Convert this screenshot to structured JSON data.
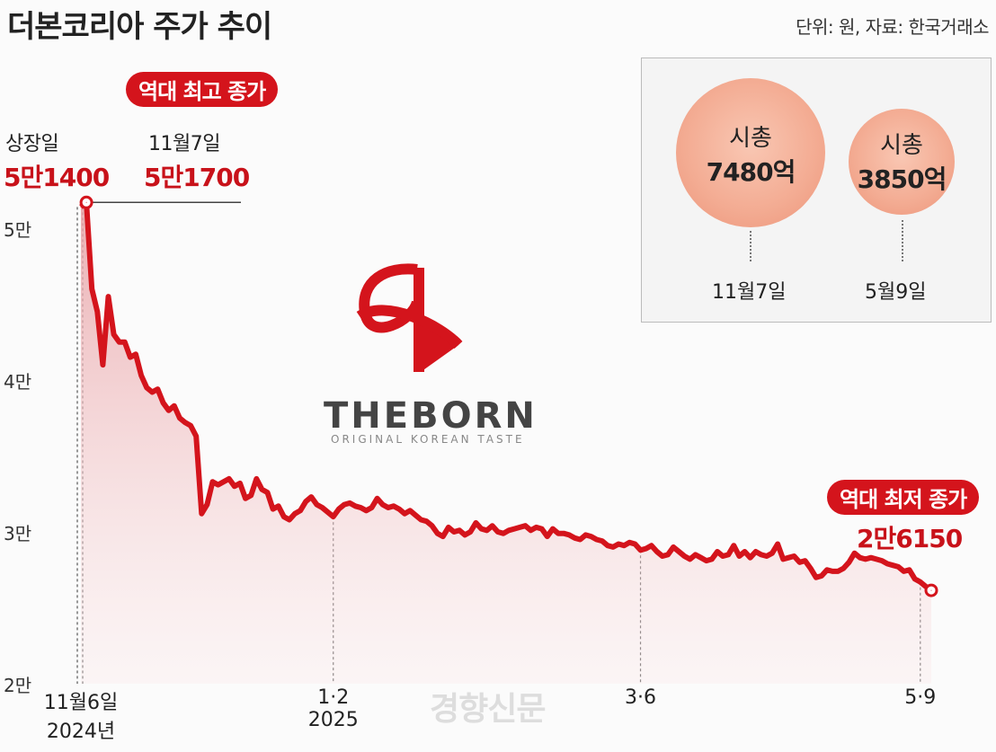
{
  "title": "더본코리아 주가 추이",
  "source": "단위: 원, 자료: 한국거래소",
  "annotations": {
    "high_pill": "역대 최고 종가",
    "low_pill": "역대 최저 종가",
    "listing_label": "상장일",
    "listing_value": "5만1400",
    "high_date": "11월7일",
    "high_value": "5만1700",
    "low_value": "2만6150"
  },
  "market_cap": {
    "bubbles": [
      {
        "label": "시총",
        "value": "7480억",
        "date": "11월7일"
      },
      {
        "label": "시총",
        "value": "3850억",
        "date": "5월9일"
      }
    ],
    "color": "#f3ab92"
  },
  "logo": {
    "word": "THEBORN",
    "tagline": "ORIGINAL KOREAN TASTE",
    "color": "#d4141c"
  },
  "watermark": "경향신문",
  "chart_data": {
    "type": "area",
    "title": "더본코리아 주가 추이",
    "unit_note": "단위: 원",
    "y_tick_labels": [
      "5만",
      "4만",
      "3만",
      "2만"
    ],
    "y_ticks": [
      50000,
      40000,
      30000,
      20000
    ],
    "ylim": [
      20000,
      51700
    ],
    "x_tick_labels": [
      {
        "line1": "11월6일",
        "line2": "2024년"
      },
      {
        "line1": "1·2",
        "line2": "2025"
      },
      {
        "line1": "3·6",
        "line2": ""
      },
      {
        "line1": "5·9",
        "line2": ""
      }
    ],
    "x_tick_index": [
      0,
      46,
      102,
      153
    ],
    "line_color": "#d4141c",
    "series": [
      {
        "values": [
          51400,
          51700,
          46000,
          44500,
          41000,
          45500,
          43000,
          42500,
          42500,
          41500,
          41700,
          40300,
          39500,
          39200,
          39400,
          38500,
          38000,
          38300,
          37500,
          37200,
          37000,
          36300,
          31200,
          31800,
          33300,
          33100,
          33300,
          33500,
          33000,
          33200,
          32200,
          32400,
          33500,
          32800,
          32600,
          31500,
          31700,
          31000,
          30800,
          31200,
          31400,
          32000,
          32300,
          31800,
          31600,
          31300,
          31000,
          31500,
          31800,
          31900,
          31700,
          31600,
          31400,
          31600,
          32200,
          31800,
          31600,
          31700,
          31500,
          31200,
          31400,
          31100,
          30800,
          30700,
          30400,
          29900,
          29700,
          30300,
          30000,
          30100,
          29800,
          30000,
          30600,
          30200,
          30100,
          30400,
          30000,
          29900,
          30100,
          30200,
          30300,
          30400,
          30100,
          30300,
          30200,
          29700,
          30200,
          29900,
          29900,
          29800,
          29600,
          29500,
          29800,
          29700,
          29500,
          29400,
          29100,
          29000,
          29200,
          29100,
          29300,
          29200,
          28800,
          28900,
          29100,
          28700,
          28400,
          28500,
          29000,
          28700,
          28400,
          28200,
          28500,
          28300,
          28100,
          28200,
          28700,
          28400,
          28500,
          29100,
          28400,
          28700,
          28300,
          28700,
          28500,
          28400,
          28600,
          29200,
          28200,
          28300,
          28400,
          28000,
          28100,
          27600,
          27000,
          27100,
          27500,
          27400,
          27400,
          27600,
          28000,
          28600,
          28300,
          28200,
          28300,
          28200,
          28100,
          27900,
          27800,
          27700,
          27400,
          27500,
          26900,
          26700,
          26400,
          26150
        ]
      }
    ]
  }
}
